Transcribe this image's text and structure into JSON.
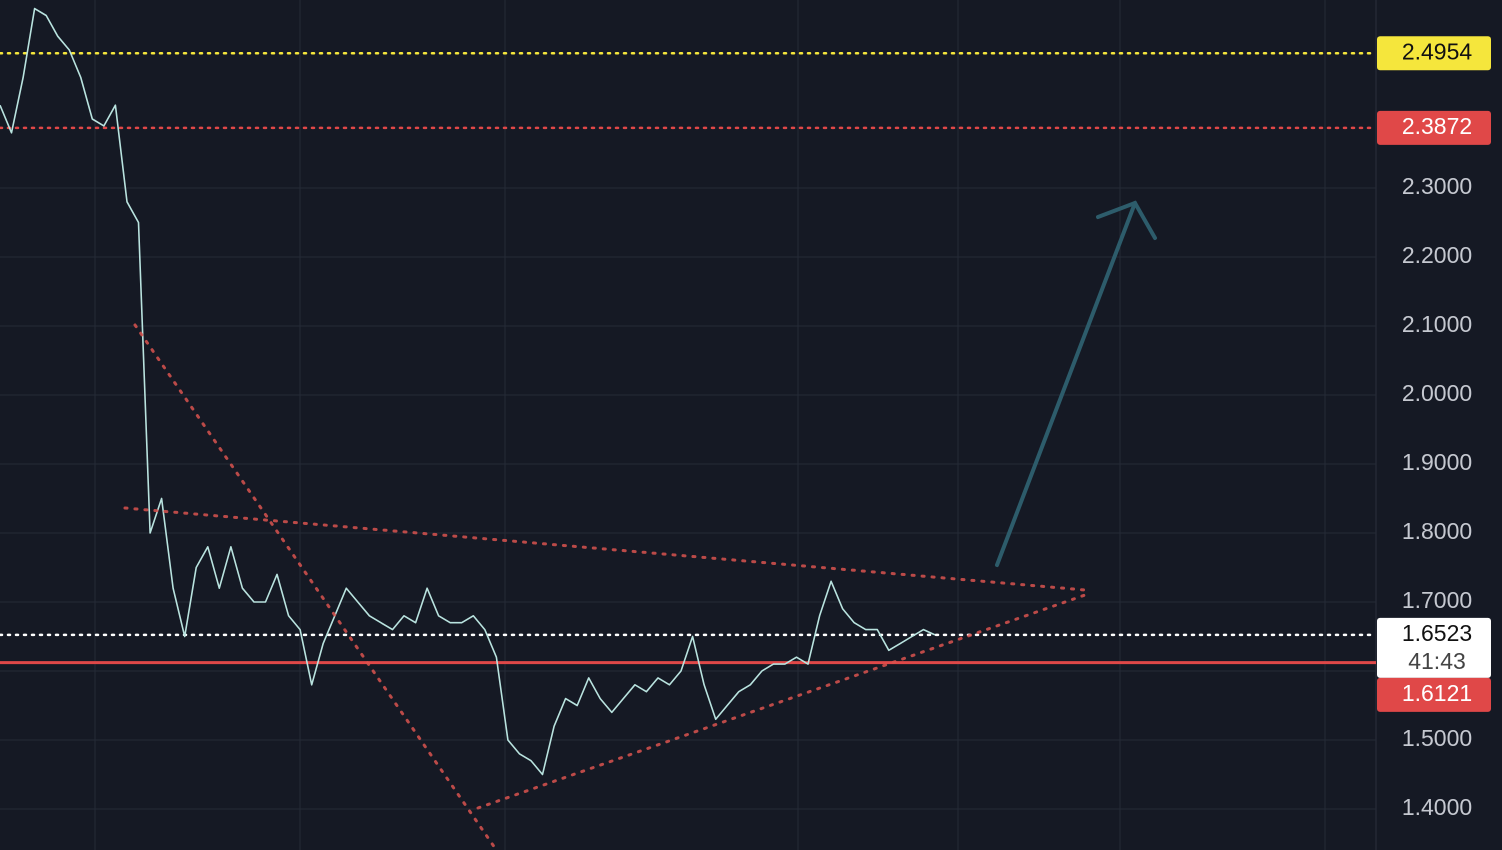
{
  "chart_data": {
    "type": "line",
    "values": [
      2.42,
      2.38,
      2.46,
      2.56,
      2.55,
      2.52,
      2.5,
      2.46,
      2.4,
      2.39,
      2.42,
      2.28,
      2.25,
      1.8,
      1.85,
      1.72,
      1.65,
      1.75,
      1.78,
      1.72,
      1.78,
      1.72,
      1.7,
      1.7,
      1.74,
      1.68,
      1.66,
      1.58,
      1.64,
      1.68,
      1.72,
      1.7,
      1.68,
      1.67,
      1.66,
      1.68,
      1.67,
      1.72,
      1.68,
      1.67,
      1.67,
      1.68,
      1.66,
      1.62,
      1.5,
      1.48,
      1.47,
      1.45,
      1.52,
      1.56,
      1.55,
      1.59,
      1.56,
      1.54,
      1.56,
      1.58,
      1.57,
      1.59,
      1.58,
      1.6,
      1.65,
      1.58,
      1.53,
      1.55,
      1.57,
      1.58,
      1.6,
      1.61,
      1.61,
      1.62,
      1.61,
      1.68,
      1.73,
      1.69,
      1.67,
      1.66,
      1.66,
      1.63,
      1.64,
      1.65,
      1.66,
      1.6523
    ],
    "color": "#b9e3df",
    "ylim": [
      1.3406,
      2.5725
    ],
    "yticks": [
      {
        "value": 1.4,
        "label": "1.4000"
      },
      {
        "value": 1.5,
        "label": "1.5000"
      },
      {
        "value": 1.6,
        "label": "1.6000"
      },
      {
        "value": 1.7,
        "label": "1.7000"
      },
      {
        "value": 1.8,
        "label": "1.8000"
      },
      {
        "value": 1.9,
        "label": "1.9000"
      },
      {
        "value": 2.0,
        "label": "2.0000"
      },
      {
        "value": 2.1,
        "label": "2.1000"
      },
      {
        "value": 2.2,
        "label": "2.2000"
      },
      {
        "value": 2.3,
        "label": "2.3000"
      }
    ],
    "grid": true,
    "levels": [
      {
        "value": 2.4954,
        "color": "#f5e63c",
        "style": "dotted"
      },
      {
        "value": 2.3872,
        "color": "#e04848",
        "style": "dotted"
      },
      {
        "value": 1.6523,
        "color": "#ffffff",
        "style": "dotted",
        "countdown": "41:43"
      },
      {
        "value": 1.6121,
        "color": "#e04848",
        "style": "solid"
      }
    ]
  }
}
